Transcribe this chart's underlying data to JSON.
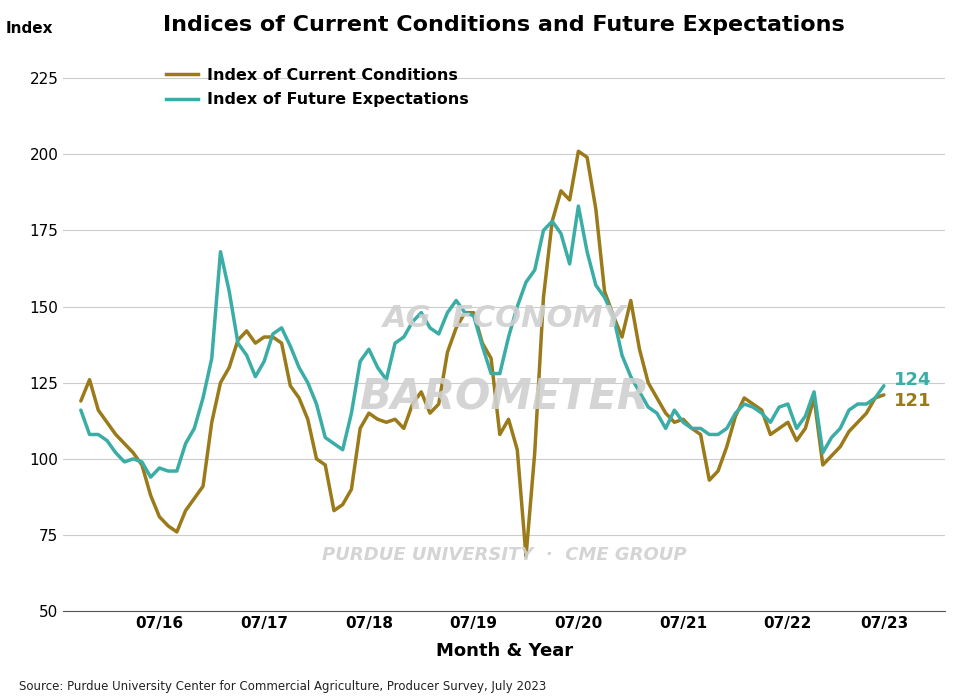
{
  "title": "Indices of Current Conditions and Future Expectations",
  "xlabel": "Month & Year",
  "ylabel": "Index",
  "source_text": "Source: Purdue University Center for Commercial Agriculture, Producer Survey, July 2023",
  "ylim": [
    50,
    235
  ],
  "yticks": [
    50,
    75,
    100,
    125,
    150,
    175,
    200,
    225
  ],
  "xtick_labels": [
    "07/16",
    "07/17",
    "07/18",
    "07/19",
    "07/20",
    "07/21",
    "07/22",
    "07/23"
  ],
  "xtick_positions": [
    9,
    21,
    33,
    45,
    57,
    69,
    81,
    92
  ],
  "legend_labels": [
    "Index of Current Conditions",
    "Index of Future Expectations"
  ],
  "color_cc": "#9B7A1A",
  "color_fe": "#3AADA6",
  "end_label_cc": "121",
  "end_label_fe": "124",
  "icc": [
    119,
    126,
    116,
    112,
    108,
    105,
    102,
    98,
    88,
    81,
    78,
    76,
    83,
    87,
    91,
    112,
    125,
    130,
    139,
    142,
    138,
    140,
    140,
    138,
    124,
    120,
    113,
    100,
    98,
    83,
    85,
    90,
    110,
    115,
    113,
    112,
    113,
    110,
    118,
    122,
    115,
    118,
    135,
    143,
    148,
    148,
    138,
    133,
    108,
    113,
    103,
    68,
    102,
    153,
    178,
    188,
    185,
    201,
    199,
    182,
    155,
    147,
    140,
    152,
    136,
    125,
    120,
    115,
    112,
    113,
    110,
    108,
    93,
    96,
    104,
    114,
    120,
    118,
    116,
    108,
    110,
    112,
    106,
    110,
    120,
    98,
    101,
    104,
    109,
    112,
    115,
    120,
    121
  ],
  "ife": [
    116,
    108,
    108,
    106,
    102,
    99,
    100,
    99,
    94,
    97,
    96,
    96,
    105,
    110,
    120,
    133,
    168,
    155,
    138,
    134,
    127,
    132,
    141,
    143,
    137,
    130,
    125,
    118,
    107,
    105,
    103,
    115,
    132,
    136,
    130,
    126,
    138,
    140,
    145,
    148,
    143,
    141,
    148,
    152,
    148,
    147,
    137,
    128,
    128,
    140,
    150,
    158,
    162,
    175,
    178,
    174,
    164,
    183,
    168,
    157,
    153,
    147,
    134,
    127,
    122,
    117,
    115,
    110,
    116,
    112,
    110,
    110,
    108,
    108,
    110,
    115,
    118,
    117,
    115,
    112,
    117,
    118,
    110,
    114,
    122,
    102,
    107,
    110,
    116,
    118,
    118,
    120,
    124
  ],
  "n_points": 93
}
